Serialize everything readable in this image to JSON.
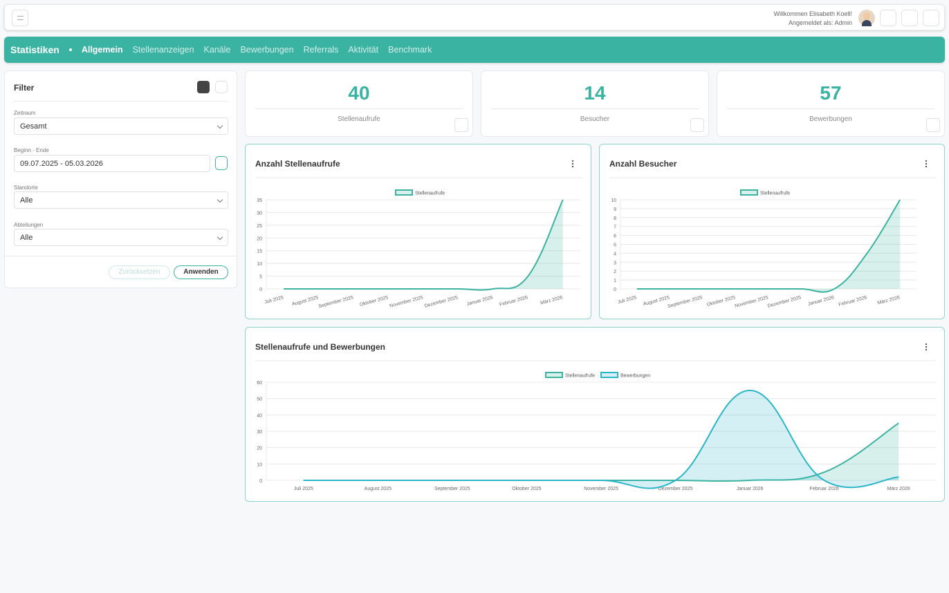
{
  "header": {
    "welcome": "Willkommen Elisabeth Koell!",
    "logged_in": "Angemeldet als: Admin"
  },
  "nav": {
    "title": "Statistiken",
    "items": [
      "Allgemein",
      "Stellenanzeigen",
      "Kanäle",
      "Bewerbungen",
      "Referrals",
      "Aktivität",
      "Benchmark"
    ]
  },
  "filter": {
    "title": "Filter",
    "fields": [
      {
        "label": "Zeitraum",
        "value": "Gesamt"
      },
      {
        "label": "Beginn - Ende",
        "value": "09.07.2025 - 05.03.2026"
      },
      {
        "label": "Standorte",
        "value": "Alle"
      },
      {
        "label": "Abteilungen",
        "value": "Alle"
      }
    ],
    "reset": "Zurücksetzen",
    "apply": "Anwenden"
  },
  "kpis": [
    {
      "value": 40,
      "label": "Stellenaufrufe"
    },
    {
      "value": 14,
      "label": "Besucher"
    },
    {
      "value": 57,
      "label": "Bewerbungen"
    }
  ],
  "charts": [
    {
      "type": "area",
      "title": "Anzahl Stellenaufrufe",
      "categories": [
        "Juli 2025",
        "August 2025",
        "September 2025",
        "Oktober 2025",
        "November 2025",
        "Dezember 2025",
        "Januar 2026",
        "Februar 2026",
        "März 2026"
      ],
      "series": [
        {
          "name": "Stellenaufrufe",
          "color": "#3bb3a0",
          "values": [
            0,
            0,
            0,
            0,
            0,
            0,
            0,
            5,
            35
          ]
        }
      ],
      "ylim": [
        0,
        35
      ],
      "yticks": [
        0,
        5,
        10,
        15,
        20,
        25,
        30,
        35
      ],
      "grid": true,
      "rotate_labels": true
    },
    {
      "type": "area",
      "title": "Anzahl Besucher",
      "categories": [
        "Juli 2025",
        "August 2025",
        "September 2025",
        "Oktober 2025",
        "November 2025",
        "Dezember 2025",
        "Januar 2026",
        "Februar 2026",
        "März 2026"
      ],
      "series": [
        {
          "name": "Stellenaufrufe",
          "color": "#3bb3a0",
          "values": [
            0,
            0,
            0,
            0,
            0,
            0,
            0,
            4,
            10
          ]
        }
      ],
      "ylim": [
        0,
        10
      ],
      "yticks": [
        0,
        1,
        2,
        3,
        4,
        5,
        6,
        7,
        8,
        9,
        10
      ],
      "grid": true,
      "rotate_labels": true
    },
    {
      "type": "area",
      "title": "Stellenaufrufe und Bewerbungen",
      "categories": [
        "Juli 2025",
        "August 2025",
        "September 2025",
        "Oktober 2025",
        "November 2025",
        "Dezember 2025",
        "Januar 2026",
        "Februar 2026",
        "März 2026"
      ],
      "series": [
        {
          "name": "Stellenaufrufe",
          "color": "#3bb3a0",
          "values": [
            0,
            0,
            0,
            0,
            0,
            0,
            0,
            5,
            35
          ]
        },
        {
          "name": "Bewerbungen",
          "color": "#2bb5c8",
          "values": [
            0,
            0,
            0,
            0,
            0,
            0,
            55,
            0,
            2
          ]
        }
      ],
      "ylim": [
        0,
        60
      ],
      "yticks": [
        0,
        10,
        20,
        30,
        40,
        50,
        60
      ],
      "grid": true,
      "rotate_labels": false
    }
  ]
}
